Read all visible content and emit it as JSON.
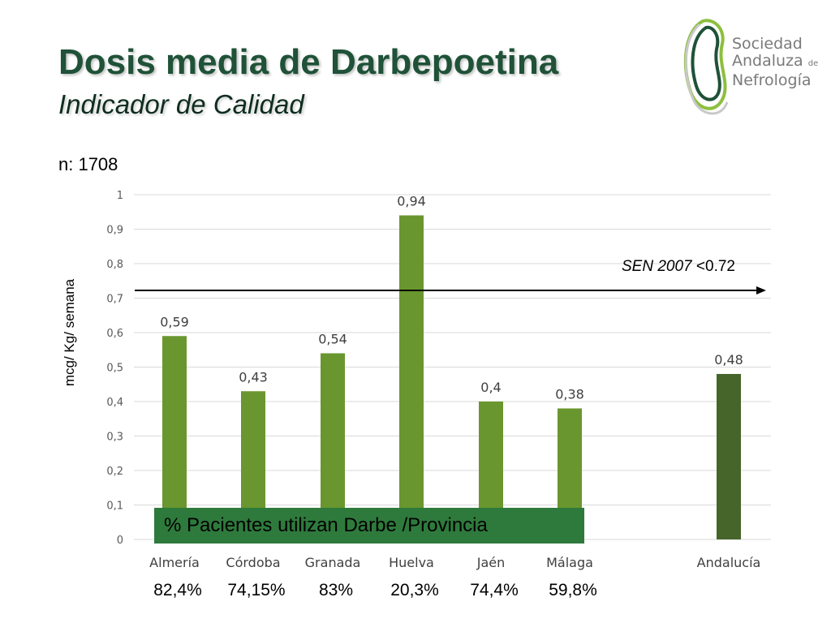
{
  "header": {
    "title": "Dosis media de Darbepoetina",
    "subtitle": "Indicador de Calidad",
    "n_label": "n: 1708"
  },
  "logo": {
    "line1": "Sociedad",
    "line2": "Andaluza",
    "line2_small": "de",
    "line3": "Nefrología"
  },
  "reference_line": {
    "label_italic": "SEN 2007",
    "label_rest": " <0.72",
    "value": 0.72
  },
  "legend_box": {
    "text": "% Pacientes utilizan Darbe /Provincia"
  },
  "percentages": [
    "82,4%",
    "74,15%",
    "83%",
    "20,3%",
    "74,4%",
    "59,8%"
  ],
  "colors": {
    "bar": "#6a962f",
    "bar_highlight": "#46652a",
    "title": "#1f5238",
    "legend_box": "#2e7a3c"
  },
  "chart_data": {
    "type": "bar",
    "categories": [
      "Almería",
      "Córdoba",
      "Granada",
      "Huelva",
      "Jaén",
      "Málaga",
      "Andalucía"
    ],
    "values": [
      0.59,
      0.43,
      0.54,
      0.94,
      0.4,
      0.38,
      0.48
    ],
    "data_labels": [
      "0,59",
      "0,43",
      "0,54",
      "0,94",
      "0,4",
      "0,38",
      "0,48"
    ],
    "title": "",
    "xlabel": "",
    "ylabel": "mcg/ Kg/ semana",
    "ylim": [
      0,
      1
    ],
    "yticks": [
      "0",
      "0,1",
      "0,2",
      "0,3",
      "0,4",
      "0,5",
      "0,6",
      "0,7",
      "0,8",
      "0,9",
      "1"
    ],
    "grid": true,
    "highlight_category": "Andalucía"
  }
}
